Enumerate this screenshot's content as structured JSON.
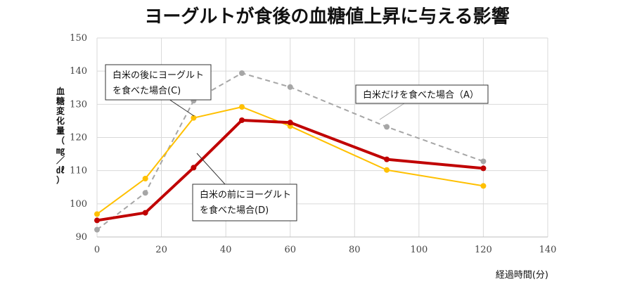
{
  "chart_data": {
    "type": "line",
    "title": "ヨーグルトが食後の血糖値上昇に与える影響",
    "ylabel": "血糖変化量（㎎／㎗）",
    "xlabel": "経過時間(分)",
    "xlim": [
      0,
      140
    ],
    "ylim": [
      90,
      150
    ],
    "x_ticks": [
      0,
      20,
      40,
      60,
      80,
      100,
      120,
      140
    ],
    "y_ticks": [
      90,
      100,
      110,
      120,
      130,
      140,
      150
    ],
    "grid": true,
    "series": [
      {
        "key": "A",
        "label_lines": [
          "白米だけを食べた場合（A）"
        ],
        "color": "#a6a6a6",
        "dashed": true,
        "width": 2,
        "x": [
          0,
          15,
          30,
          45,
          60,
          90,
          120
        ],
        "y": [
          92.2,
          103.3,
          131.1,
          139.4,
          135.2,
          123.2,
          112.8
        ]
      },
      {
        "key": "C",
        "label_lines": [
          "白米の後にヨーグルト",
          "を食べた場合(C)"
        ],
        "color": "#ffc000",
        "dashed": false,
        "width": 2,
        "x": [
          0,
          15,
          30,
          45,
          60,
          90,
          120
        ],
        "y": [
          96.9,
          107.6,
          125.9,
          129.2,
          123.4,
          110.2,
          105.4
        ]
      },
      {
        "key": "D",
        "label_lines": [
          "白米の前にヨーグルト",
          "を食べた場合(D)"
        ],
        "color": "#c00000",
        "dashed": false,
        "width": 4,
        "x": [
          0,
          15,
          30,
          45,
          60,
          90,
          120
        ],
        "y": [
          95.0,
          97.3,
          110.9,
          125.2,
          124.5,
          113.4,
          110.7
        ]
      }
    ]
  }
}
